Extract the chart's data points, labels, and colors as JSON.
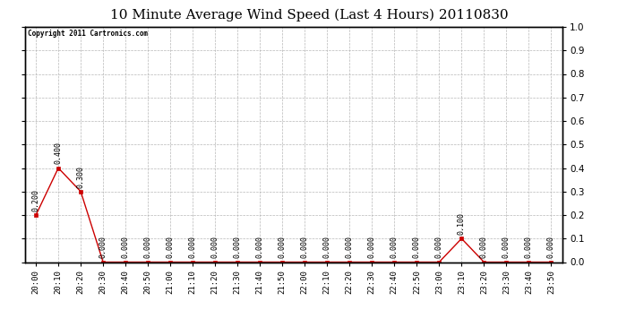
{
  "title": "10 Minute Average Wind Speed (Last 4 Hours) 20110830",
  "copyright_text": "Copyright 2011 Cartronics.com",
  "x_labels": [
    "20:00",
    "20:10",
    "20:20",
    "20:30",
    "20:40",
    "20:50",
    "21:00",
    "21:10",
    "21:20",
    "21:30",
    "21:40",
    "21:50",
    "22:00",
    "22:10",
    "22:20",
    "22:30",
    "22:40",
    "22:50",
    "23:00",
    "23:10",
    "23:20",
    "23:30",
    "23:40",
    "23:50"
  ],
  "y_values": [
    0.2,
    0.4,
    0.3,
    0.0,
    0.0,
    0.0,
    0.0,
    0.0,
    0.0,
    0.0,
    0.0,
    0.0,
    0.0,
    0.0,
    0.0,
    0.0,
    0.0,
    0.0,
    0.0,
    0.1,
    0.0,
    0.0,
    0.0,
    0.0
  ],
  "line_color": "#cc0000",
  "marker_color": "#cc0000",
  "background_color": "#ffffff",
  "plot_bg_color": "#ffffff",
  "grid_color": "#b0b0b0",
  "title_fontsize": 11,
  "annotation_fontsize": 6,
  "ylim": [
    0.0,
    1.0
  ],
  "yticks": [
    0.0,
    0.1,
    0.2,
    0.3,
    0.4,
    0.5,
    0.6,
    0.7,
    0.8,
    0.9,
    1.0
  ]
}
